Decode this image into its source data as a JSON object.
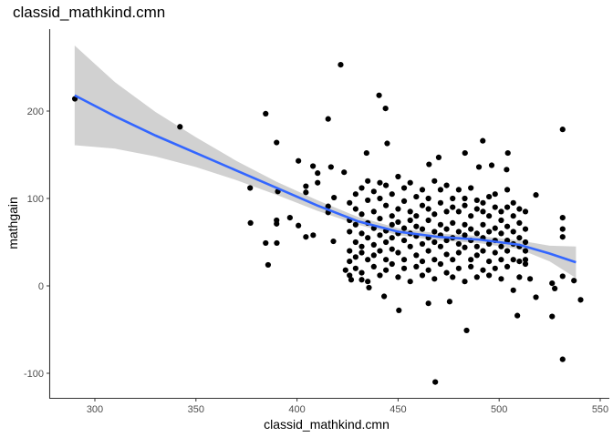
{
  "chart_data": {
    "type": "scatter",
    "title": "classid_mathkind.cmn",
    "xlabel": "classid_mathkind.cmn",
    "ylabel": "mathgain",
    "xlim": [
      279,
      556
    ],
    "ylim": [
      -128,
      294
    ],
    "xticks": [
      300,
      350,
      400,
      450,
      500,
      550
    ],
    "yticks": [
      -100,
      0,
      100,
      200
    ],
    "grid": false,
    "legend": "none",
    "colors": {
      "points": "#000000",
      "smooth_line": "#3366FF",
      "confidence_band": "#CCCCCC"
    },
    "points": [
      [
        290.1,
        214
      ],
      [
        342.1,
        182
      ],
      [
        384.5,
        197
      ],
      [
        376.8,
        112
      ],
      [
        377,
        72
      ],
      [
        384.5,
        49
      ],
      [
        385.7,
        24
      ],
      [
        389.9,
        164
      ],
      [
        390.5,
        108
      ],
      [
        389.9,
        75
      ],
      [
        389.9,
        71
      ],
      [
        390,
        49
      ],
      [
        396.5,
        78
      ],
      [
        400.7,
        143
      ],
      [
        400.7,
        69
      ],
      [
        415.4,
        191
      ],
      [
        421.6,
        253
      ],
      [
        440.6,
        218
      ],
      [
        443.8,
        203
      ],
      [
        444.6,
        163
      ],
      [
        531.4,
        179
      ],
      [
        531.4,
        -84
      ],
      [
        468.4,
        -110
      ],
      [
        483.9,
        -51
      ],
      [
        450.4,
        -28
      ],
      [
        526.2,
        -35
      ],
      [
        540.3,
        -16
      ],
      [
        537,
        6
      ],
      [
        531.4,
        11
      ],
      [
        531.4,
        78
      ],
      [
        531.4,
        65
      ],
      [
        531.4,
        56
      ],
      [
        509,
        -34
      ],
      [
        465,
        -20
      ],
      [
        475.5,
        -18
      ],
      [
        491.9,
        166
      ],
      [
        504.3,
        152
      ],
      [
        483.1,
        152
      ],
      [
        434.4,
        152
      ],
      [
        470.1,
        147
      ],
      [
        465.3,
        139
      ],
      [
        407.9,
        137
      ],
      [
        416.8,
        136
      ],
      [
        423.3,
        130
      ],
      [
        490,
        136
      ],
      [
        496.3,
        138
      ],
      [
        503.7,
        133
      ],
      [
        518.2,
        104
      ],
      [
        515.3,
        8
      ],
      [
        518.2,
        -13
      ],
      [
        526.2,
        3
      ],
      [
        527.5,
        -3
      ],
      [
        443.1,
        -12
      ],
      [
        435.6,
        -2
      ],
      [
        424,
        18
      ],
      [
        426.8,
        7
      ],
      [
        432,
        7
      ],
      [
        404.4,
        114
      ],
      [
        404.4,
        107
      ],
      [
        410.2,
        118
      ],
      [
        410.2,
        129
      ],
      [
        404.4,
        56
      ],
      [
        408,
        58
      ],
      [
        415.4,
        91
      ],
      [
        415.4,
        84
      ],
      [
        418.3,
        101
      ],
      [
        418,
        51
      ],
      [
        426,
        95
      ],
      [
        426,
        62
      ],
      [
        426,
        40
      ],
      [
        426,
        28
      ],
      [
        426,
        75
      ],
      [
        426,
        12
      ],
      [
        429,
        88
      ],
      [
        429,
        50
      ],
      [
        429,
        33
      ],
      [
        429,
        70
      ],
      [
        429,
        105
      ],
      [
        429,
        20
      ],
      [
        432,
        112
      ],
      [
        432,
        60
      ],
      [
        432,
        45
      ],
      [
        432,
        82
      ],
      [
        432,
        15
      ],
      [
        432,
        38
      ],
      [
        435,
        98
      ],
      [
        435,
        72
      ],
      [
        435,
        55
      ],
      [
        435,
        30
      ],
      [
        435,
        120
      ],
      [
        435,
        5
      ],
      [
        438,
        85
      ],
      [
        438,
        47
      ],
      [
        438,
        66
      ],
      [
        438,
        22
      ],
      [
        438,
        108
      ],
      [
        438,
        35
      ],
      [
        441,
        100
      ],
      [
        441,
        58
      ],
      [
        441,
        40
      ],
      [
        441,
        77
      ],
      [
        441,
        12
      ],
      [
        441,
        118
      ],
      [
        444,
        92
      ],
      [
        444,
        63
      ],
      [
        444,
        30
      ],
      [
        444,
        50
      ],
      [
        444,
        115
      ],
      [
        444,
        18
      ],
      [
        447,
        80
      ],
      [
        447,
        55
      ],
      [
        447,
        70
      ],
      [
        447,
        25
      ],
      [
        447,
        105
      ],
      [
        447,
        42
      ],
      [
        450,
        125
      ],
      [
        450,
        60
      ],
      [
        450,
        38
      ],
      [
        450,
        88
      ],
      [
        450,
        10
      ],
      [
        450,
        73
      ],
      [
        453,
        97
      ],
      [
        453,
        52
      ],
      [
        453,
        66
      ],
      [
        453,
        30
      ],
      [
        453,
        112
      ],
      [
        453,
        20
      ],
      [
        456,
        85
      ],
      [
        456,
        45
      ],
      [
        456,
        60
      ],
      [
        456,
        75
      ],
      [
        456,
        5
      ],
      [
        456,
        118
      ],
      [
        459,
        102
      ],
      [
        459,
        57
      ],
      [
        459,
        35
      ],
      [
        459,
        80
      ],
      [
        459,
        22
      ],
      [
        459,
        68
      ],
      [
        462,
        92
      ],
      [
        462,
        48
      ],
      [
        462,
        65
      ],
      [
        462,
        28
      ],
      [
        462,
        110
      ],
      [
        462,
        12
      ],
      [
        465,
        88
      ],
      [
        465,
        55
      ],
      [
        465,
        40
      ],
      [
        465,
        75
      ],
      [
        465,
        100
      ],
      [
        465,
        18
      ],
      [
        468,
        120
      ],
      [
        468,
        62
      ],
      [
        468,
        30
      ],
      [
        468,
        82
      ],
      [
        468,
        50
      ],
      [
        468,
        8
      ],
      [
        471,
        95
      ],
      [
        471,
        58
      ],
      [
        471,
        45
      ],
      [
        471,
        70
      ],
      [
        471,
        25
      ],
      [
        471,
        110
      ],
      [
        474,
        85
      ],
      [
        474,
        52
      ],
      [
        474,
        36
      ],
      [
        474,
        65
      ],
      [
        474,
        115
      ],
      [
        474,
        15
      ],
      [
        477,
        100
      ],
      [
        477,
        55
      ],
      [
        477,
        72
      ],
      [
        477,
        30
      ],
      [
        477,
        10
      ],
      [
        477,
        90
      ],
      [
        480,
        110
      ],
      [
        480,
        48
      ],
      [
        480,
        62
      ],
      [
        480,
        38
      ],
      [
        480,
        85
      ],
      [
        480,
        20
      ],
      [
        483,
        92
      ],
      [
        483,
        58
      ],
      [
        483,
        44
      ],
      [
        483,
        70
      ],
      [
        483,
        5
      ],
      [
        483,
        100
      ],
      [
        486,
        80
      ],
      [
        486,
        52
      ],
      [
        486,
        65
      ],
      [
        486,
        30
      ],
      [
        486,
        112
      ],
      [
        486,
        22
      ],
      [
        489,
        98
      ],
      [
        489,
        45
      ],
      [
        489,
        60
      ],
      [
        489,
        35
      ],
      [
        489,
        88
      ],
      [
        489,
        10
      ],
      [
        492,
        85
      ],
      [
        492,
        55
      ],
      [
        492,
        40
      ],
      [
        492,
        70
      ],
      [
        492,
        18
      ],
      [
        492,
        95
      ],
      [
        495,
        102
      ],
      [
        495,
        48
      ],
      [
        495,
        62
      ],
      [
        495,
        28
      ],
      [
        495,
        80
      ],
      [
        495,
        12
      ],
      [
        498,
        90
      ],
      [
        498,
        52
      ],
      [
        498,
        38
      ],
      [
        498,
        66
      ],
      [
        498,
        20
      ],
      [
        498,
        105
      ],
      [
        501,
        85
      ],
      [
        501,
        45
      ],
      [
        501,
        60
      ],
      [
        501,
        30
      ],
      [
        501,
        75
      ],
      [
        501,
        8
      ],
      [
        504,
        110
      ],
      [
        504,
        52
      ],
      [
        504,
        40
      ],
      [
        504,
        68
      ],
      [
        504,
        22
      ],
      [
        504,
        90
      ],
      [
        507,
        95
      ],
      [
        507,
        48
      ],
      [
        507,
        62
      ],
      [
        507,
        30
      ],
      [
        507,
        -5
      ],
      [
        507,
        80
      ],
      [
        510,
        72
      ],
      [
        510,
        45
      ],
      [
        510,
        55
      ],
      [
        510,
        28
      ],
      [
        510,
        10
      ],
      [
        510,
        88
      ],
      [
        513,
        65
      ],
      [
        513,
        40
      ],
      [
        513,
        50
      ],
      [
        513,
        25
      ],
      [
        513,
        85
      ],
      [
        513,
        30
      ]
    ],
    "smooth": {
      "x": [
        290,
        310,
        330,
        350,
        370,
        390,
        410,
        430,
        450,
        470,
        490,
        510,
        525,
        538
      ],
      "y": [
        218,
        194,
        172,
        152,
        132,
        112,
        92,
        74,
        62,
        56,
        53,
        47,
        37,
        27
      ],
      "lower": [
        161,
        157,
        148,
        136,
        121,
        104,
        86,
        70,
        58,
        52,
        49,
        42,
        28,
        9
      ],
      "upper": [
        275,
        233,
        199,
        170,
        143,
        119,
        98,
        79,
        66,
        60,
        57,
        52,
        46,
        45
      ]
    }
  }
}
